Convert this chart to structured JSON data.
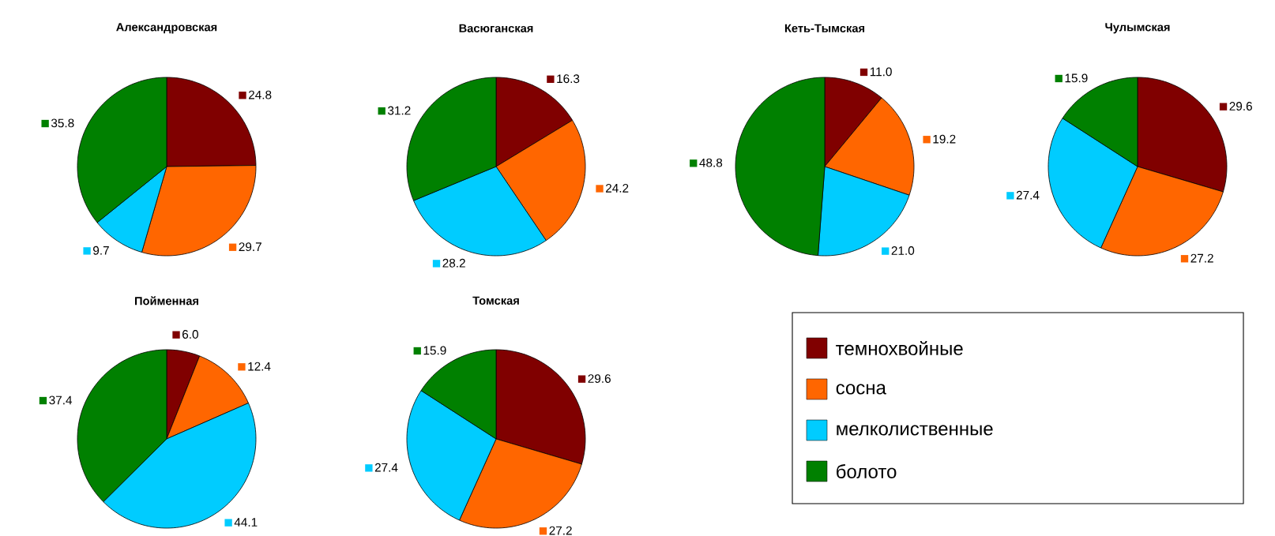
{
  "chart_data": [
    {
      "type": "pie",
      "title": "Александровская",
      "categories": [
        null,
        null,
        null,
        null
      ],
      "values": [
        24.8,
        29.7,
        9.7,
        35.8
      ],
      "value_labels": [
        "24.8",
        "29.7",
        "9.7",
        "35.8"
      ],
      "colors": [
        "#800000",
        "#ff6600",
        "#00ccff",
        "#008000"
      ]
    },
    {
      "type": "pie",
      "title": "Васюганская",
      "categories": [
        null,
        null,
        null,
        null
      ],
      "values": [
        16.3,
        24.2,
        28.2,
        31.2
      ],
      "value_labels": [
        "16.3",
        "24.2",
        "28.2",
        "31.2"
      ],
      "colors": [
        "#800000",
        "#ff6600",
        "#00ccff",
        "#008000"
      ]
    },
    {
      "type": "pie",
      "title": "Кеть-Тымская",
      "categories": [
        null,
        null,
        null,
        null
      ],
      "values": [
        11.0,
        19.2,
        21.0,
        48.8
      ],
      "value_labels": [
        "11.0",
        "19.2",
        "21.0",
        "48.8"
      ],
      "colors": [
        "#800000",
        "#ff6600",
        "#00ccff",
        "#008000"
      ]
    },
    {
      "type": "pie",
      "title": "Чулымская",
      "categories": [
        null,
        null,
        null,
        null
      ],
      "values": [
        29.6,
        27.2,
        27.4,
        15.9
      ],
      "value_labels": [
        "29.6",
        "27.2",
        "27.4",
        "15.9"
      ],
      "colors": [
        "#800000",
        "#ff6600",
        "#00ccff",
        "#008000"
      ]
    },
    {
      "type": "pie",
      "title": "Пойменная",
      "categories": [
        null,
        null,
        null,
        null
      ],
      "values": [
        6.0,
        12.4,
        44.1,
        37.4
      ],
      "value_labels": [
        "6.0",
        "12.4",
        "44.1",
        "37.4"
      ],
      "colors": [
        "#800000",
        "#ff6600",
        "#00ccff",
        "#008000"
      ]
    },
    {
      "type": "pie",
      "title": "Томская",
      "categories": [
        "темнохвойные",
        "сосна",
        "мелколиственные",
        "болото"
      ],
      "values": [
        29.6,
        27.2,
        27.4,
        15.9
      ],
      "value_labels": [
        "29.6",
        "27.2",
        "27.4",
        "15.9"
      ],
      "colors": [
        "#800000",
        "#ff6600",
        "#00ccff",
        "#008000"
      ],
      "legend": "right"
    }
  ]
}
